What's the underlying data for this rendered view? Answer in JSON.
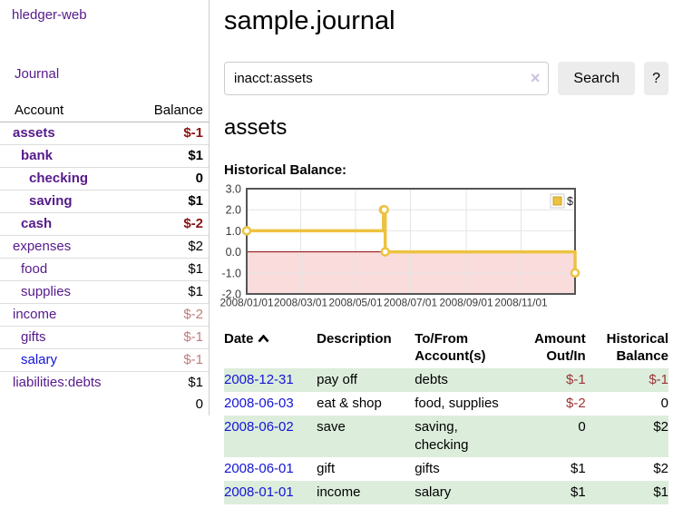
{
  "app": {
    "brand": "hledger-web",
    "nav_journal_label": "Journal"
  },
  "colors": {
    "link_purple": "#551a8b",
    "link_blue": "#1414d6",
    "negative_strong": "#8b1212",
    "negative_soft": "#c07c7c",
    "row_stripe_green": "#dceddc",
    "series_yellow": "#edc240",
    "chart_negative_region": "#fbdcdc",
    "chart_zero_line": "#8b0000",
    "chart_border": "#555555",
    "chart_grid": "#e4e4e4"
  },
  "sidebar": {
    "header": {
      "account": "Account",
      "balance": "Balance"
    },
    "accounts": [
      {
        "name": "assets",
        "depth": 0,
        "bold": true,
        "link": "purple",
        "balance": "$-1",
        "balance_class": "neg-strong"
      },
      {
        "name": "bank",
        "depth": 1,
        "bold": true,
        "link": "purple",
        "balance": "$1",
        "balance_class": ""
      },
      {
        "name": "checking",
        "depth": 2,
        "bold": true,
        "link": "purple",
        "balance": "0",
        "balance_class": ""
      },
      {
        "name": "saving",
        "depth": 2,
        "bold": true,
        "link": "purple",
        "balance": "$1",
        "balance_class": ""
      },
      {
        "name": "cash",
        "depth": 1,
        "bold": true,
        "link": "purple",
        "balance": "$-2",
        "balance_class": "neg-strong"
      },
      {
        "name": "expenses",
        "depth": 0,
        "bold": false,
        "link": "purple",
        "balance": "$2",
        "balance_class": ""
      },
      {
        "name": "food",
        "depth": 1,
        "bold": false,
        "link": "purple",
        "balance": "$1",
        "balance_class": ""
      },
      {
        "name": "supplies",
        "depth": 1,
        "bold": false,
        "link": "purple",
        "balance": "$1",
        "balance_class": ""
      },
      {
        "name": "income",
        "depth": 0,
        "bold": false,
        "link": "purple",
        "balance": "$-2",
        "balance_class": "neg-soft"
      },
      {
        "name": "gifts",
        "depth": 1,
        "bold": false,
        "link": "purple",
        "balance": "$-1",
        "balance_class": "neg-soft"
      },
      {
        "name": "salary",
        "depth": 1,
        "bold": false,
        "link": "blue",
        "balance": "$-1",
        "balance_class": "neg-soft"
      },
      {
        "name": "liabilities:debts",
        "depth": 0,
        "bold": false,
        "link": "purple",
        "balance": "$1",
        "balance_class": ""
      }
    ],
    "total": "0"
  },
  "main": {
    "title": "sample.journal",
    "search": {
      "value": "inacct:assets",
      "clear_icon": "×",
      "search_button": "Search",
      "help_button": "?"
    },
    "account_heading": "assets",
    "chart_label": "Historical Balance:"
  },
  "chart_data": {
    "type": "line",
    "step": true,
    "title": "Historical Balance",
    "series": [
      {
        "name": "$",
        "color": "#edc240",
        "points": [
          [
            "2008-01-01",
            1
          ],
          [
            "2008-06-01",
            2
          ],
          [
            "2008-06-02",
            2
          ],
          [
            "2008-06-03",
            0
          ],
          [
            "2008-12-31",
            -1
          ]
        ]
      }
    ],
    "x_range": [
      "2008-01-01",
      "2008-12-31"
    ],
    "x_ticks": [
      {
        "date": "2008-01-01",
        "label": "2008/01/01"
      },
      {
        "date": "2008-03-01",
        "label": "2008/03/01"
      },
      {
        "date": "2008-05-01",
        "label": "2008/05/01"
      },
      {
        "date": "2008-07-01",
        "label": "2008/07/01"
      },
      {
        "date": "2008-09-01",
        "label": "2008/09/01"
      },
      {
        "date": "2008-11-01",
        "label": "2008/11/01"
      }
    ],
    "y_ticks": [
      3.0,
      2.0,
      1.0,
      0.0,
      -1.0,
      -2.0
    ],
    "ylim": [
      -2,
      3
    ],
    "grid": true,
    "legend_position": "top-right",
    "negative_region_color": "#fbdcdc",
    "zero_line_color": "#8b0000"
  },
  "register": {
    "headers": {
      "date": "Date",
      "description": "Description",
      "accounts": "To/From Account(s)",
      "amount": "Amount Out/In",
      "balance": "Historical Balance"
    },
    "rows": [
      {
        "date": "2008-12-31",
        "description": "pay off",
        "accounts": "debts",
        "amount": "$-1",
        "amount_neg": true,
        "balance": "$-1",
        "balance_neg": true
      },
      {
        "date": "2008-06-03",
        "description": "eat & shop",
        "accounts": "food, supplies",
        "amount": "$-2",
        "amount_neg": true,
        "balance": "0",
        "balance_neg": false
      },
      {
        "date": "2008-06-02",
        "description": "save",
        "accounts": "saving, checking",
        "amount": "0",
        "amount_neg": false,
        "balance": "$2",
        "balance_neg": false
      },
      {
        "date": "2008-06-01",
        "description": "gift",
        "accounts": "gifts",
        "amount": "$1",
        "amount_neg": false,
        "balance": "$2",
        "balance_neg": false
      },
      {
        "date": "2008-01-01",
        "description": "income",
        "accounts": "salary",
        "amount": "$1",
        "amount_neg": false,
        "balance": "$1",
        "balance_neg": false
      }
    ]
  }
}
